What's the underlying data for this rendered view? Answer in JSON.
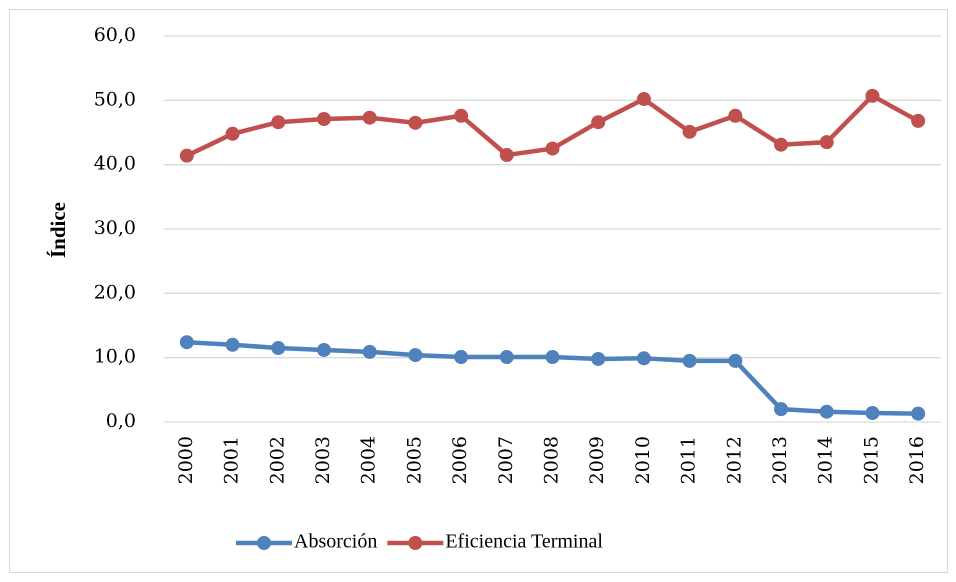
{
  "chart_data": {
    "type": "line",
    "y_label": "Índice",
    "categories": [
      "2000",
      "2001",
      "2002",
      "2003",
      "2004",
      "2005",
      "2006",
      "2007",
      "2008",
      "2009",
      "2010",
      "2011",
      "2012",
      "2013",
      "2014",
      "2015",
      "2016"
    ],
    "series": [
      {
        "name": "Absorción",
        "color": "#4f81bd",
        "values": [
          12.4,
          12.0,
          11.5,
          11.2,
          10.9,
          10.4,
          10.1,
          10.1,
          10.1,
          9.8,
          9.9,
          9.5,
          9.5,
          2.0,
          1.6,
          1.4,
          1.3
        ]
      },
      {
        "name": "Eficiencia Terminal",
        "color": "#c0504d",
        "values": [
          41.4,
          44.8,
          46.6,
          47.1,
          47.3,
          46.5,
          47.6,
          41.5,
          42.5,
          46.6,
          50.2,
          45.1,
          47.6,
          43.1,
          43.5,
          50.7,
          46.8
        ]
      }
    ],
    "ylim": [
      0,
      60
    ],
    "yticks": [
      {
        "value": 0,
        "label": "0,0"
      },
      {
        "value": 10,
        "label": "10,0"
      },
      {
        "value": 20,
        "label": "20,0"
      },
      {
        "value": 30,
        "label": "30,0"
      },
      {
        "value": 40,
        "label": "40,0"
      },
      {
        "value": 50,
        "label": "50,0"
      },
      {
        "value": 60,
        "label": "60,0"
      }
    ],
    "grid": true,
    "legend": "bottom"
  }
}
